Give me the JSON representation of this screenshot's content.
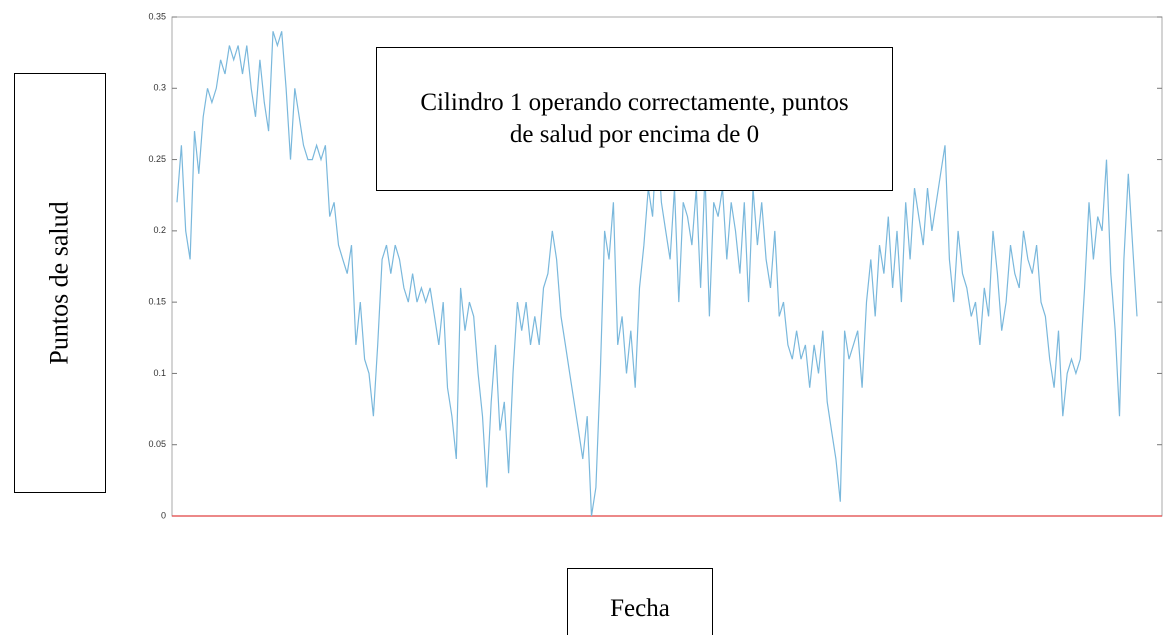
{
  "chart_data": {
    "type": "line",
    "annotation": "Cilindro 1 operando correctamente, puntos de salud por encima de 0",
    "y_label": "Puntos de salud",
    "x_label": "Fecha",
    "series": [
      {
        "name": null,
        "color": "#7ab8dc",
        "values": [
          0.22,
          0.26,
          0.2,
          0.18,
          0.27,
          0.24,
          0.28,
          0.3,
          0.29,
          0.3,
          0.32,
          0.31,
          0.33,
          0.32,
          0.33,
          0.31,
          0.33,
          0.3,
          0.28,
          0.32,
          0.29,
          0.27,
          0.34,
          0.33,
          0.34,
          0.3,
          0.25,
          0.3,
          0.28,
          0.26,
          0.25,
          0.25,
          0.26,
          0.25,
          0.26,
          0.21,
          0.22,
          0.19,
          0.18,
          0.17,
          0.19,
          0.12,
          0.15,
          0.11,
          0.1,
          0.07,
          0.12,
          0.18,
          0.19,
          0.17,
          0.19,
          0.18,
          0.16,
          0.15,
          0.17,
          0.15,
          0.16,
          0.15,
          0.16,
          0.14,
          0.12,
          0.15,
          0.09,
          0.07,
          0.04,
          0.16,
          0.13,
          0.15,
          0.14,
          0.1,
          0.07,
          0.02,
          0.08,
          0.12,
          0.06,
          0.08,
          0.03,
          0.1,
          0.15,
          0.13,
          0.15,
          0.12,
          0.14,
          0.12,
          0.16,
          0.17,
          0.2,
          0.18,
          0.14,
          0.12,
          0.1,
          0.08,
          0.06,
          0.04,
          0.07,
          0.0,
          0.02,
          0.1,
          0.2,
          0.18,
          0.22,
          0.12,
          0.14,
          0.1,
          0.13,
          0.09,
          0.16,
          0.19,
          0.23,
          0.21,
          0.27,
          0.22,
          0.2,
          0.18,
          0.23,
          0.15,
          0.22,
          0.21,
          0.19,
          0.23,
          0.16,
          0.24,
          0.14,
          0.22,
          0.21,
          0.23,
          0.18,
          0.22,
          0.2,
          0.17,
          0.22,
          0.15,
          0.23,
          0.19,
          0.22,
          0.18,
          0.16,
          0.2,
          0.14,
          0.15,
          0.12,
          0.11,
          0.13,
          0.11,
          0.12,
          0.09,
          0.12,
          0.1,
          0.13,
          0.08,
          0.06,
          0.04,
          0.01,
          0.13,
          0.11,
          0.12,
          0.13,
          0.09,
          0.15,
          0.18,
          0.14,
          0.19,
          0.17,
          0.21,
          0.16,
          0.2,
          0.15,
          0.22,
          0.18,
          0.23,
          0.21,
          0.19,
          0.23,
          0.2,
          0.22,
          0.24,
          0.26,
          0.18,
          0.15,
          0.2,
          0.17,
          0.16,
          0.14,
          0.15,
          0.12,
          0.16,
          0.14,
          0.2,
          0.17,
          0.13,
          0.15,
          0.19,
          0.17,
          0.16,
          0.2,
          0.18,
          0.17,
          0.19,
          0.15,
          0.14,
          0.11,
          0.09,
          0.13,
          0.07,
          0.1,
          0.11,
          0.1,
          0.11,
          0.16,
          0.22,
          0.18,
          0.21,
          0.2,
          0.25,
          0.17,
          0.13,
          0.07,
          0.18,
          0.24,
          0.19,
          0.14
        ]
      }
    ],
    "ylim": [
      0,
      0.35
    ],
    "yticks": [
      0,
      0.05,
      0.1,
      0.15,
      0.2,
      0.25,
      0.3,
      0.35
    ],
    "reference_line": {
      "value": 0,
      "color": "#e04040"
    }
  }
}
